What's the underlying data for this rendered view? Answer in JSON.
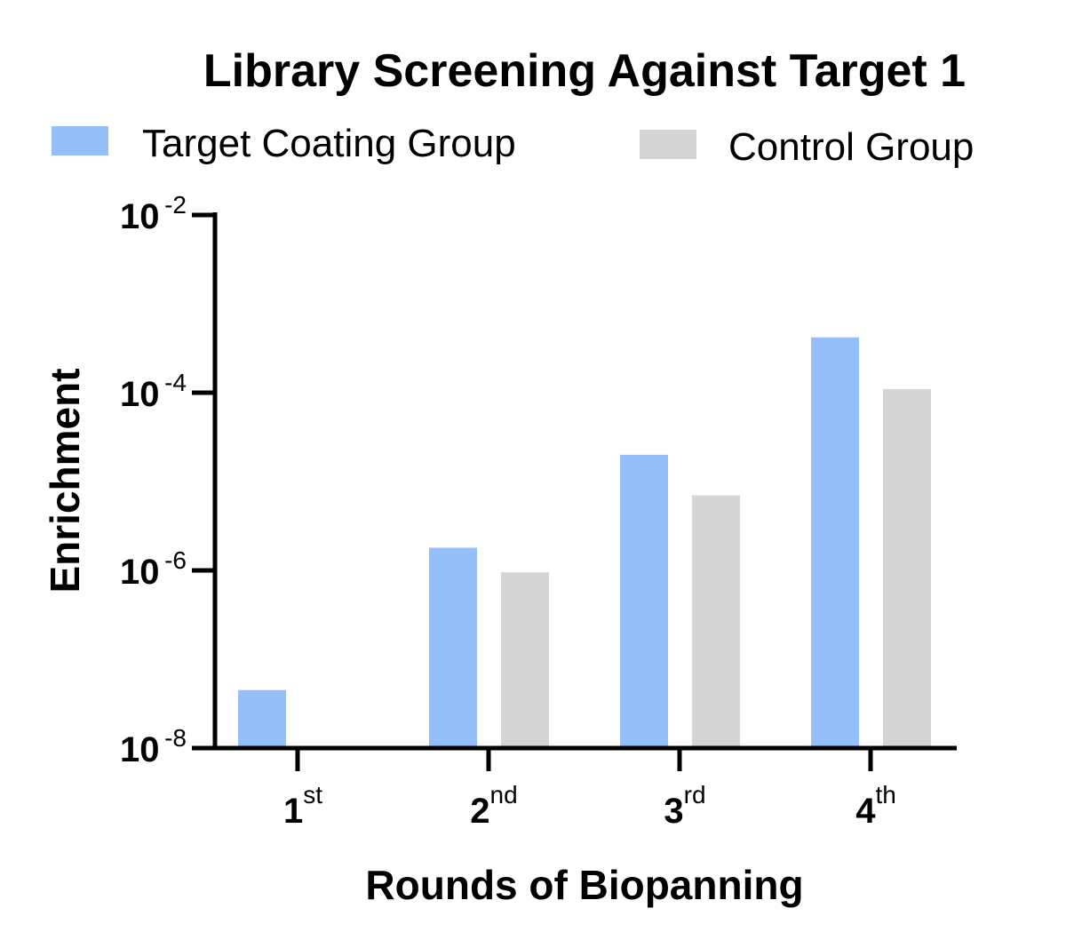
{
  "chart_data": {
    "type": "bar",
    "title": "Library Screening Against Target 1",
    "xlabel": "Rounds of Biopanning",
    "ylabel": "Enrichment",
    "y_scale": "log10",
    "ylim": [
      1e-08,
      0.01
    ],
    "y_ticks": [
      {
        "base": "10",
        "exp": "-2"
      },
      {
        "base": "10",
        "exp": "-4"
      },
      {
        "base": "10",
        "exp": "-6"
      },
      {
        "base": "10",
        "exp": "-8"
      }
    ],
    "y_tick_values": [
      0.01,
      0.0001,
      1e-06,
      1e-08
    ],
    "categories": [
      {
        "base": "1",
        "sup": "st"
      },
      {
        "base": "2",
        "sup": "nd"
      },
      {
        "base": "3",
        "sup": "rd"
      },
      {
        "base": "4",
        "sup": "th"
      }
    ],
    "series": [
      {
        "name": "Target Coating Group",
        "color": "#94bff8",
        "values": [
          4.5e-08,
          1.8e-06,
          2e-05,
          0.00042
        ]
      },
      {
        "name": "Control Group",
        "color": "#d5d5d5",
        "values": [
          null,
          9.5e-07,
          7e-06,
          0.00011
        ]
      }
    ],
    "legend_position": "top",
    "grid": false
  }
}
